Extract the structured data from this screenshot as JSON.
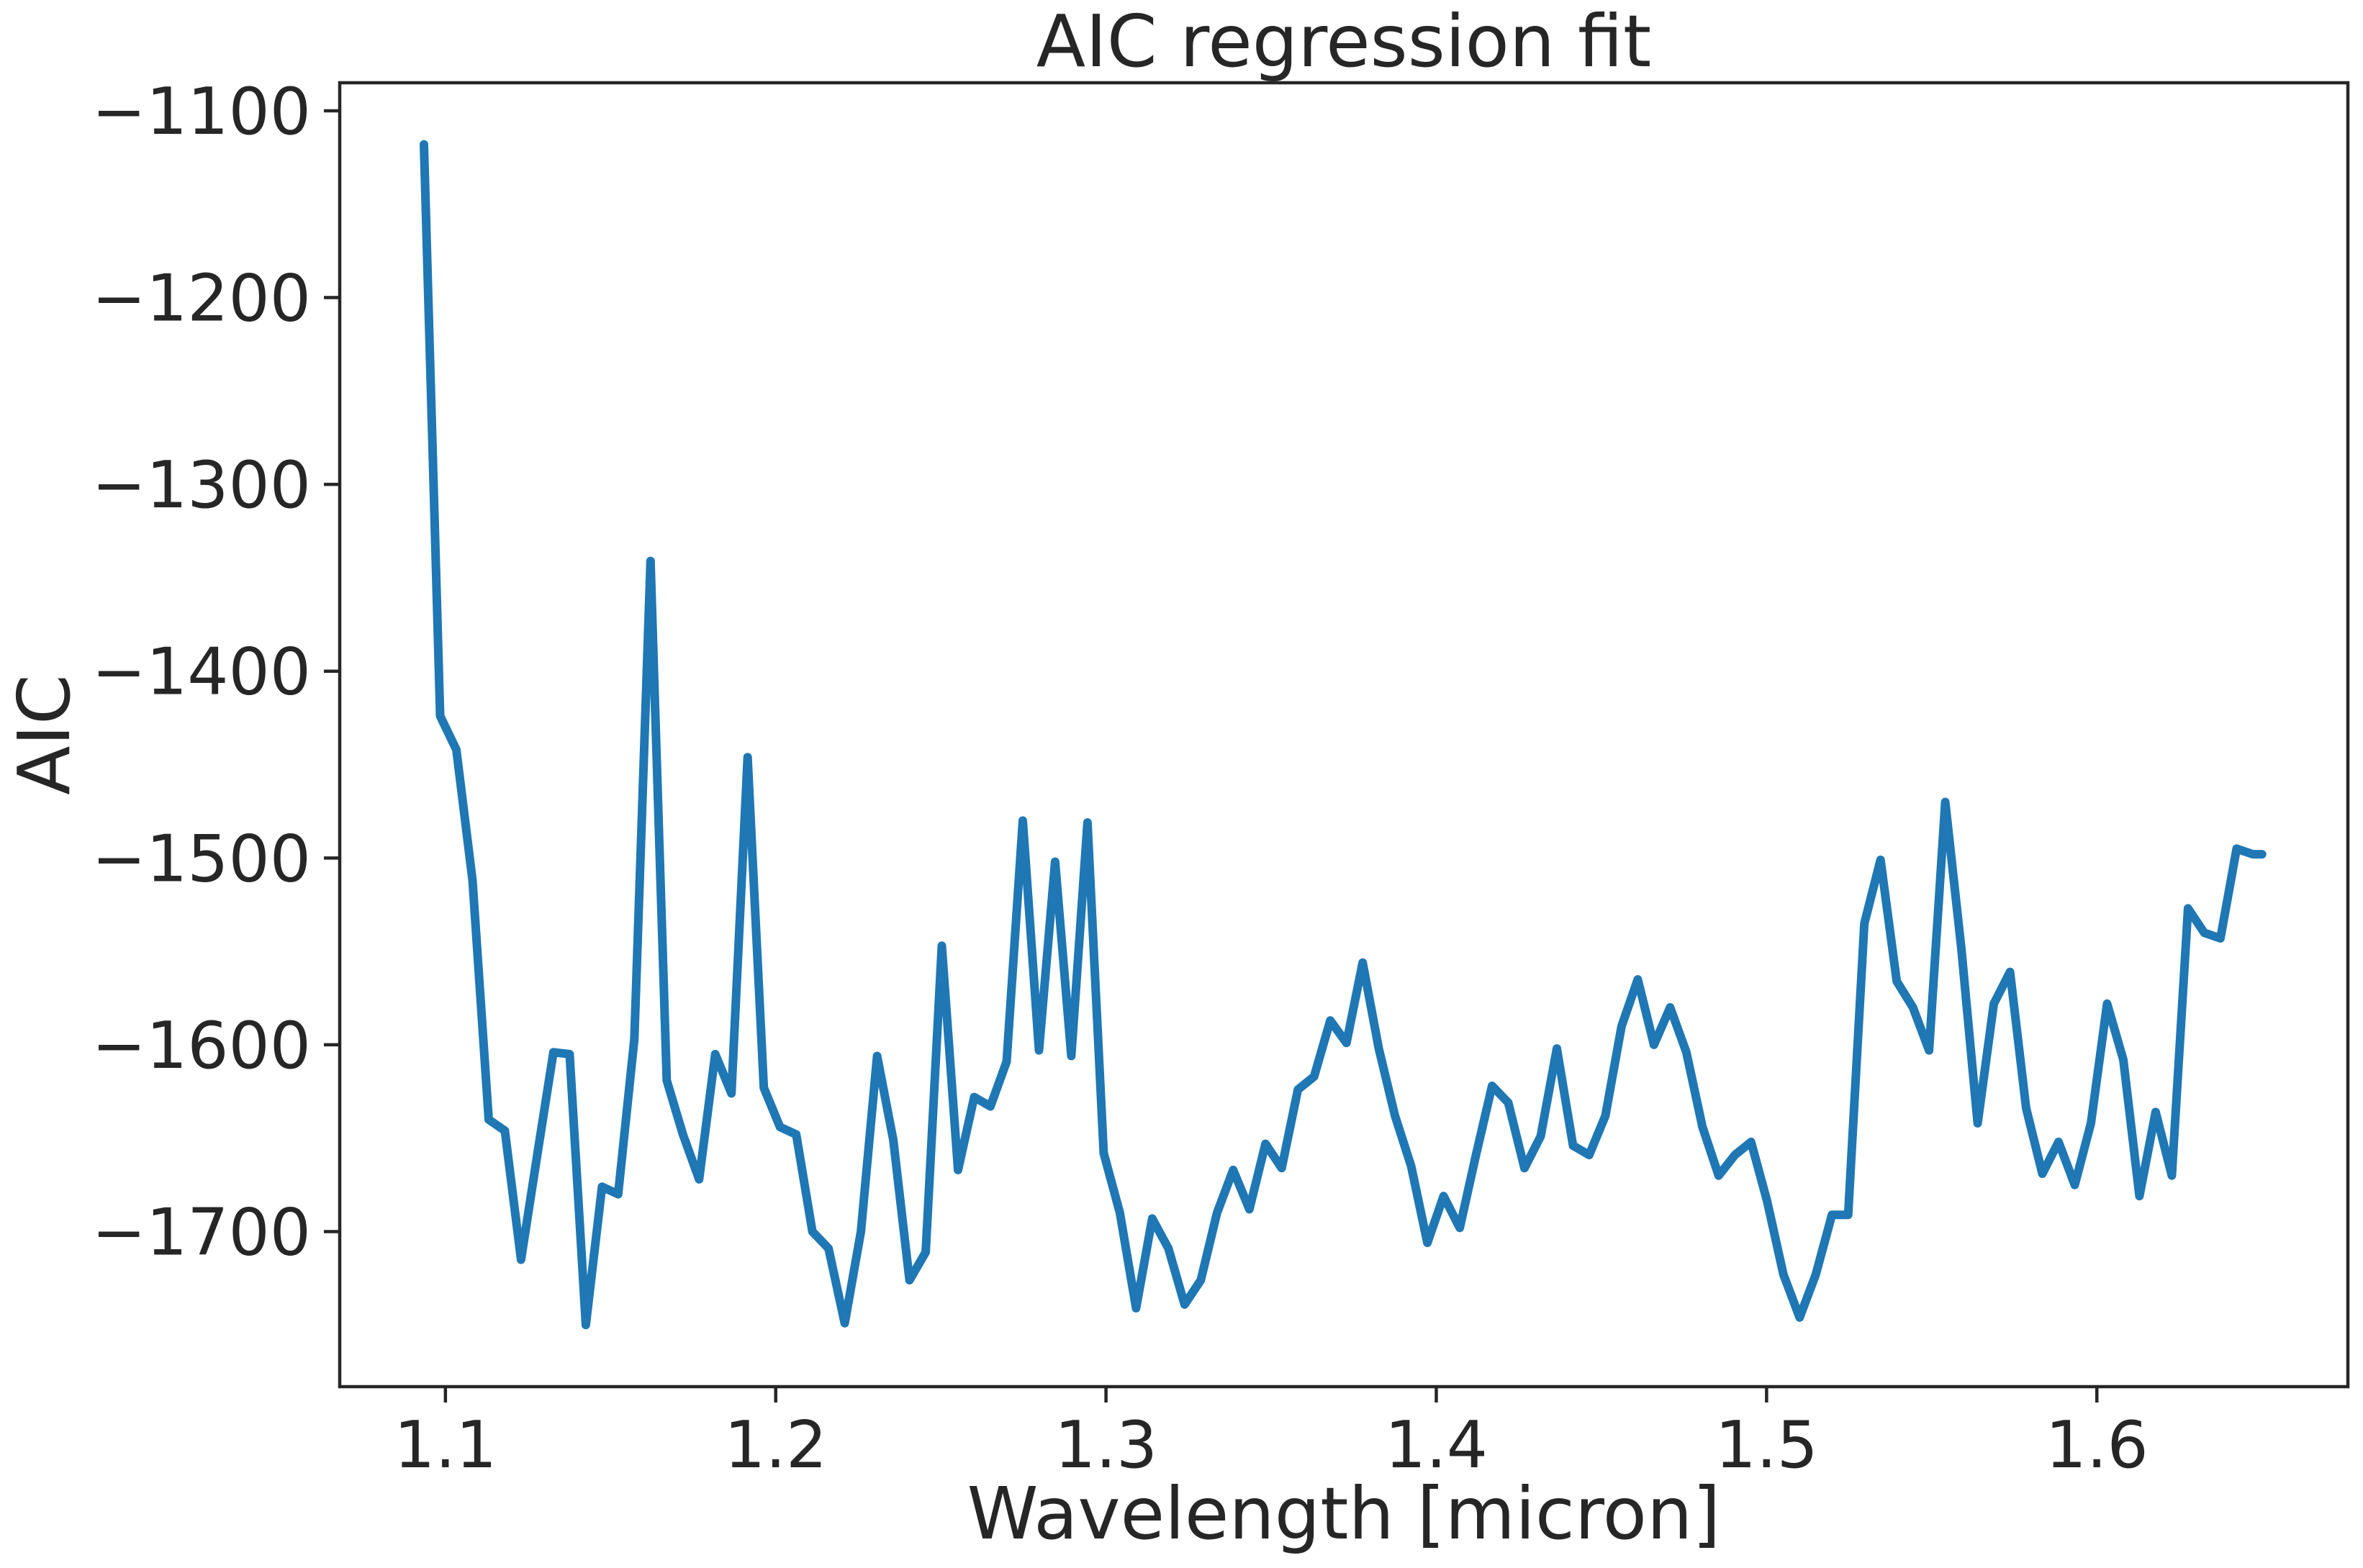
{
  "chart_data": {
    "type": "line",
    "title": "AIC regression fit",
    "xlabel": "Wavelength [micron]",
    "ylabel": "AIC",
    "xlim": [
      1.068,
      1.676
    ],
    "ylim": [
      -1783,
      -1085
    ],
    "grid": false,
    "xticks": [
      1.1,
      1.2,
      1.3,
      1.4,
      1.5,
      1.6
    ],
    "xtick_labels": [
      "1.1",
      "1.2",
      "1.3",
      "1.4",
      "1.5",
      "1.6"
    ],
    "yticks": [
      -1100,
      -1200,
      -1300,
      -1400,
      -1500,
      -1600,
      -1700
    ],
    "ytick_labels": [
      "−1100",
      "−1200",
      "−1300",
      "−1400",
      "−1500",
      "−1600",
      "−1700"
    ],
    "series": [
      {
        "color": "#1f77b4",
        "x": [
          1.0935,
          1.0984,
          1.1033,
          1.1082,
          1.1131,
          1.118,
          1.1229,
          1.1278,
          1.1327,
          1.1376,
          1.1425,
          1.1474,
          1.1523,
          1.1572,
          1.1621,
          1.167,
          1.1719,
          1.1768,
          1.1817,
          1.1866,
          1.1915,
          1.1964,
          1.2013,
          1.2062,
          1.2111,
          1.216,
          1.2209,
          1.2258,
          1.2307,
          1.2356,
          1.2405,
          1.2454,
          1.2503,
          1.2552,
          1.2601,
          1.265,
          1.2699,
          1.2748,
          1.2797,
          1.2846,
          1.2895,
          1.2944,
          1.2993,
          1.3042,
          1.3091,
          1.314,
          1.3189,
          1.3238,
          1.3287,
          1.3336,
          1.3385,
          1.3434,
          1.3483,
          1.3532,
          1.3581,
          1.363,
          1.3679,
          1.3728,
          1.3777,
          1.3826,
          1.3875,
          1.3924,
          1.3973,
          1.4022,
          1.4071,
          1.412,
          1.4169,
          1.4218,
          1.4267,
          1.4316,
          1.4365,
          1.4414,
          1.4463,
          1.4512,
          1.4561,
          1.461,
          1.4659,
          1.4708,
          1.4757,
          1.4806,
          1.4855,
          1.4904,
          1.4953,
          1.5002,
          1.5051,
          1.51,
          1.5149,
          1.5198,
          1.5247,
          1.5296,
          1.5345,
          1.5394,
          1.5443,
          1.5492,
          1.5541,
          1.559,
          1.5639,
          1.5688,
          1.5737,
          1.5786,
          1.5835,
          1.5884,
          1.5933,
          1.5982,
          1.6031,
          1.608,
          1.6129,
          1.6178,
          1.6227,
          1.6276,
          1.6325,
          1.6374,
          1.6423,
          1.6472,
          1.65
        ],
        "y": [
          -1118,
          -1424,
          -1442,
          -1512,
          -1640,
          -1646,
          -1715,
          -1659,
          -1604,
          -1605,
          -1750,
          -1676,
          -1680,
          -1597,
          -1341,
          -1619,
          -1648,
          -1672,
          -1605,
          -1626,
          -1446,
          -1623,
          -1644,
          -1648,
          -1700,
          -1709,
          -1749,
          -1700,
          -1606,
          -1651,
          -1726,
          -1711,
          -1547,
          -1667,
          -1628,
          -1633,
          -1609,
          -1480,
          -1603,
          -1502,
          -1606,
          -1481,
          -1658,
          -1690,
          -1741,
          -1693,
          -1709,
          -1739,
          -1726,
          -1690,
          -1667,
          -1688,
          -1653,
          -1666,
          -1624,
          -1617,
          -1587,
          -1599,
          -1556,
          -1602,
          -1638,
          -1665,
          -1706,
          -1681,
          -1698,
          -1659,
          -1622,
          -1631,
          -1666,
          -1649,
          -1602,
          -1654,
          -1659,
          -1638,
          -1590,
          -1565,
          -1600,
          -1580,
          -1604,
          -1644,
          -1670,
          -1659,
          -1652,
          -1684,
          -1723,
          -1746,
          -1723,
          -1691,
          -1691,
          -1535,
          -1501,
          -1566,
          -1580,
          -1603,
          -1470,
          -1549,
          -1642,
          -1578,
          -1561,
          -1634,
          -1669,
          -1652,
          -1675,
          -1642,
          -1578,
          -1608,
          -1681,
          -1636,
          -1670,
          -1527,
          -1540,
          -1543,
          -1495,
          -1498,
          -1498
        ]
      }
    ]
  }
}
